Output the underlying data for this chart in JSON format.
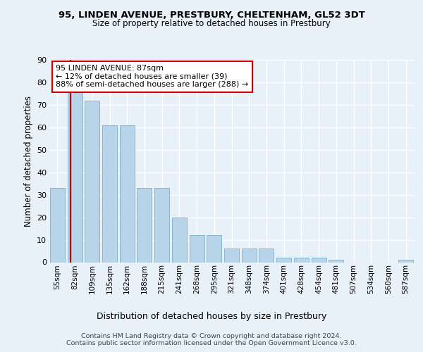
{
  "title1": "95, LINDEN AVENUE, PRESTBURY, CHELTENHAM, GL52 3DT",
  "title2": "Size of property relative to detached houses in Prestbury",
  "xlabel": "Distribution of detached houses by size in Prestbury",
  "ylabel": "Number of detached properties",
  "categories": [
    "55sqm",
    "82sqm",
    "109sqm",
    "135sqm",
    "162sqm",
    "188sqm",
    "215sqm",
    "241sqm",
    "268sqm",
    "295sqm",
    "321sqm",
    "348sqm",
    "374sqm",
    "401sqm",
    "428sqm",
    "454sqm",
    "481sqm",
    "507sqm",
    "534sqm",
    "560sqm",
    "587sqm"
  ],
  "values": [
    33,
    76,
    72,
    61,
    61,
    33,
    33,
    20,
    12,
    12,
    6,
    6,
    6,
    2,
    2,
    2,
    1,
    0,
    0,
    0,
    1
  ],
  "bar_color": "#b8d4e8",
  "bar_edge_color": "#8ab4d0",
  "marker_line_color": "#cc0000",
  "annotation_text": "95 LINDEN AVENUE: 87sqm\n← 12% of detached houses are smaller (39)\n88% of semi-detached houses are larger (288) →",
  "annotation_box_color": "#ffffff",
  "annotation_box_edge": "#cc0000",
  "ylim": [
    0,
    90
  ],
  "yticks": [
    0,
    10,
    20,
    30,
    40,
    50,
    60,
    70,
    80,
    90
  ],
  "footer1": "Contains HM Land Registry data © Crown copyright and database right 2024.",
  "footer2": "Contains public sector information licensed under the Open Government Licence v3.0.",
  "bg_color": "#e8f0f8",
  "plot_bg_color": "#e8f0f8",
  "grid_color": "#ffffff"
}
